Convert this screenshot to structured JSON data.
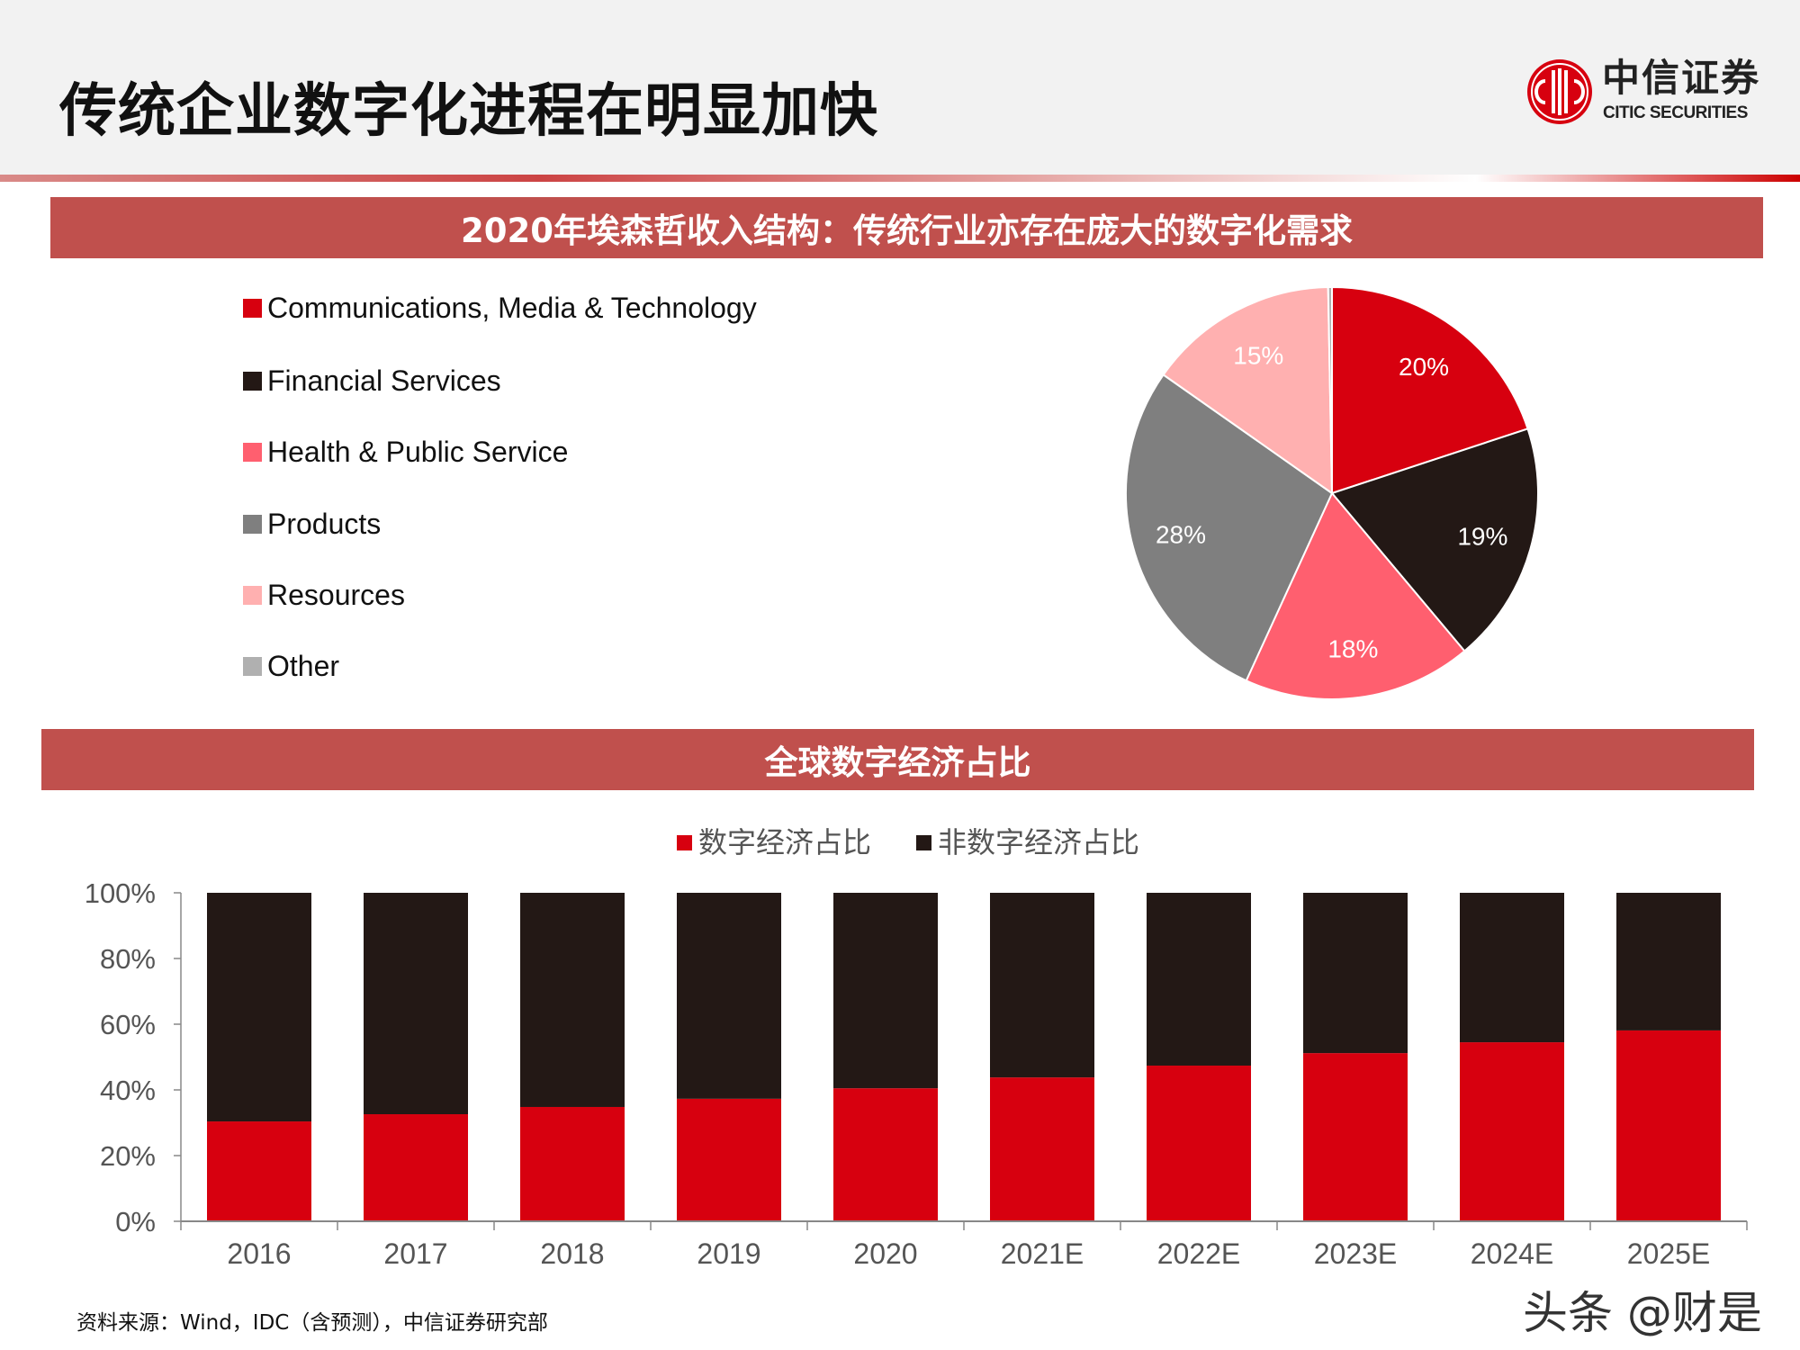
{
  "header": {
    "title": "传统企业数字化进程在明显加快",
    "logo_cn": "中信证券",
    "logo_en": "CITIC SECURITIES"
  },
  "colors": {
    "accent": "#c0504d",
    "red": "#d7000f",
    "black": "#231815"
  },
  "section1": {
    "title": "2020年埃森哲收入结构：传统行业亦存在庞大的数字化需求"
  },
  "section2": {
    "title": "全球数字经济占比"
  },
  "chart_data": [
    {
      "type": "pie",
      "legend_position": "left",
      "slices": [
        {
          "name": "Communications, Media & Technology",
          "value": 20,
          "label": "20%",
          "color": "#d7000f"
        },
        {
          "name": "Financial Services",
          "value": 19,
          "label": "19%",
          "color": "#231815"
        },
        {
          "name": "Health & Public Service",
          "value": 18,
          "label": "18%",
          "color": "#ff5f6f"
        },
        {
          "name": "Products",
          "value": 28,
          "label": "28%",
          "color": "#7f7f7f"
        },
        {
          "name": "Resources",
          "value": 15,
          "label": "15%",
          "color": "#ffb0b0"
        },
        {
          "name": "Other",
          "value": 0.3,
          "label": "",
          "color": "#b0b0b0"
        }
      ]
    },
    {
      "type": "bar",
      "stacked": true,
      "legend_position": "top",
      "categories": [
        "2016",
        "2017",
        "2018",
        "2019",
        "2020",
        "2021E",
        "2022E",
        "2023E",
        "2024E",
        "2025E"
      ],
      "series": [
        {
          "name": "数字经济占比",
          "color": "#d7000f",
          "values": [
            30.4,
            32.6,
            34.8,
            37.3,
            40.5,
            43.8,
            47.4,
            51.2,
            54.5,
            58.1
          ]
        },
        {
          "name": "非数字经济占比",
          "color": "#231815",
          "values": [
            69.6,
            67.4,
            65.2,
            62.7,
            59.5,
            56.2,
            52.6,
            48.8,
            45.5,
            41.9
          ]
        }
      ],
      "ylim": [
        0,
        100
      ],
      "yticks": [
        "0%",
        "20%",
        "40%",
        "60%",
        "80%",
        "100%"
      ],
      "grid": false
    }
  ],
  "source": "资料来源：Wind，IDC（含预测），中信证券研究部",
  "watermark": "头条 @财是"
}
